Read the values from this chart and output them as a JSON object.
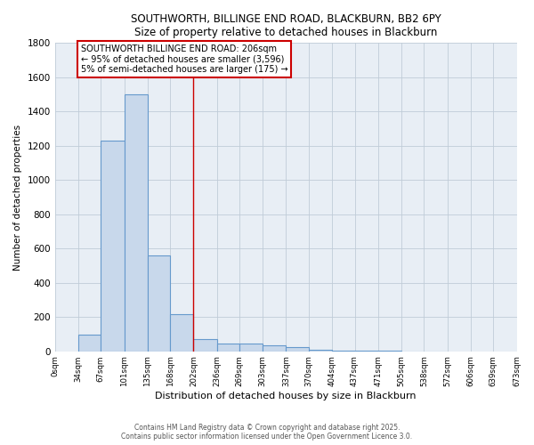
{
  "title_line1": "SOUTHWORTH, BILLINGE END ROAD, BLACKBURN, BB2 6PY",
  "title_line2": "Size of property relative to detached houses in Blackburn",
  "xlabel": "Distribution of detached houses by size in Blackburn",
  "ylabel": "Number of detached properties",
  "bin_edges": [
    0,
    34,
    67,
    101,
    135,
    168,
    202,
    236,
    269,
    303,
    337,
    370,
    404,
    437,
    471,
    505,
    538,
    572,
    606,
    639,
    673
  ],
  "bar_heights": [
    0,
    95,
    1230,
    1500,
    560,
    215,
    70,
    45,
    45,
    35,
    25,
    10,
    5,
    3,
    2,
    1,
    1,
    0,
    0,
    0
  ],
  "bar_color": "#c8d8eb",
  "bar_edge_color": "#6699cc",
  "grid_color": "#c0ccd8",
  "background_color": "#e8eef5",
  "red_line_x": 202,
  "annotation_line1": "SOUTHWORTH BILLINGE END ROAD: 206sqm",
  "annotation_line2": "← 95% of detached houses are smaller (3,596)",
  "annotation_line3": "5% of semi-detached houses are larger (175) →",
  "annotation_box_edge": "#cc0000",
  "annotation_box_bg": "white",
  "ylim": [
    0,
    1800
  ],
  "yticks": [
    0,
    200,
    400,
    600,
    800,
    1000,
    1200,
    1400,
    1600,
    1800
  ],
  "footer_line1": "Contains HM Land Registry data © Crown copyright and database right 2025.",
  "footer_line2": "Contains public sector information licensed under the Open Government Licence 3.0.",
  "tick_labels": [
    "0sqm",
    "34sqm",
    "67sqm",
    "101sqm",
    "135sqm",
    "168sqm",
    "202sqm",
    "236sqm",
    "269sqm",
    "303sqm",
    "337sqm",
    "370sqm",
    "404sqm",
    "437sqm",
    "471sqm",
    "505sqm",
    "538sqm",
    "572sqm",
    "606sqm",
    "639sqm",
    "673sqm"
  ]
}
